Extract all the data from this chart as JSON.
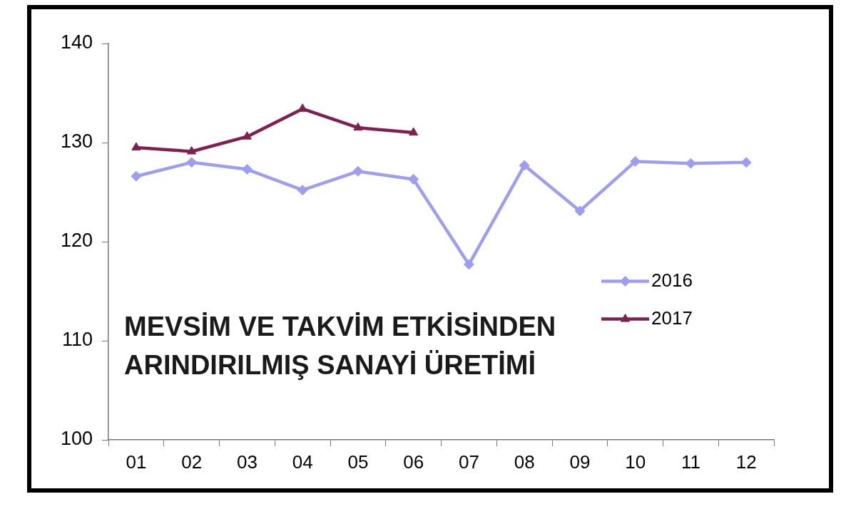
{
  "chart_data": {
    "type": "line",
    "title": "MEVSİM VE TAKVİM ETKİSİNDEN\nARINDIRILMIŞ SANAYİ ÜRETİMİ",
    "categories": [
      "01",
      "02",
      "03",
      "04",
      "05",
      "06",
      "07",
      "08",
      "09",
      "10",
      "11",
      "12"
    ],
    "series": [
      {
        "name": "2016",
        "color": "#9e9ef0",
        "marker": "diamond",
        "values": [
          126.6,
          128.0,
          127.3,
          125.2,
          127.1,
          126.3,
          117.7,
          127.7,
          123.1,
          128.1,
          127.9,
          128.0
        ]
      },
      {
        "name": "2017",
        "color": "#802050",
        "marker": "triangle",
        "values": [
          129.5,
          129.1,
          130.6,
          133.4,
          131.5,
          131.0,
          null,
          null,
          null,
          null,
          null,
          null
        ]
      }
    ],
    "ylim": [
      100,
      140
    ],
    "yticks": [
      100,
      110,
      120,
      130,
      140
    ],
    "grid": false,
    "legend": "right"
  }
}
